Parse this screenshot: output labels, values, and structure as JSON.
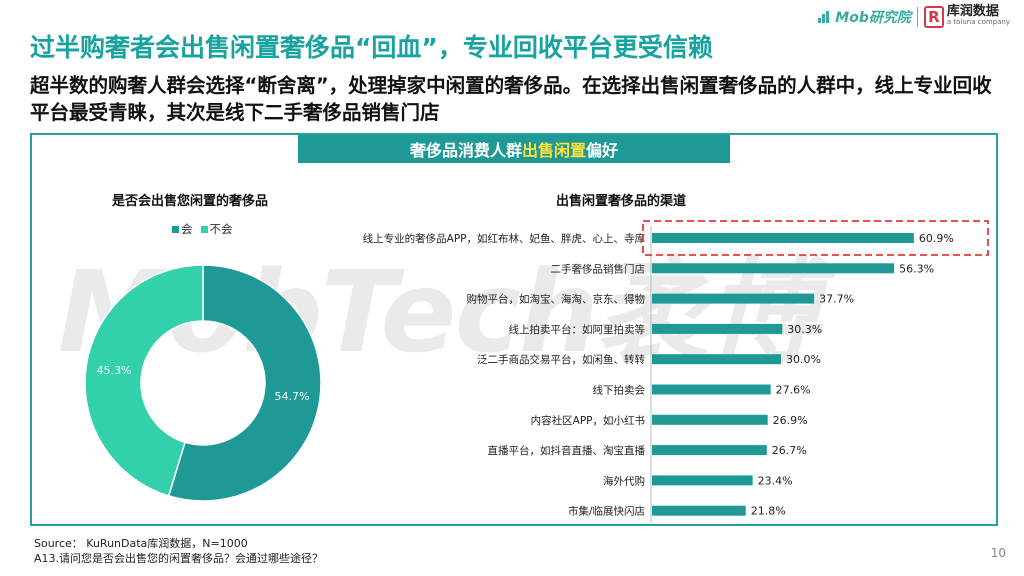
{
  "header": {
    "title": "过半购奢者会出售闲置奢侈品“回血”，专业回收平台更受信赖",
    "subtitle": "超半数的购奢人群会选择“断舍离”，处理掉家中闲置的奢侈品。在选择出售闲置奢侈品的人群中，线上专业回收平台最受青睐，其次是线下二手奢侈品销售门店"
  },
  "logos": {
    "mob": "Mob研究院",
    "kurun_main": "库润数据",
    "kurun_sub": "a toluna company",
    "kurun_mark": "R"
  },
  "banner": {
    "part1": "奢侈品消费人群",
    "highlight": "出售闲置",
    "part2": "偏好"
  },
  "watermark": "MobTech袤博",
  "colors": {
    "teal_dark": "#1e9995",
    "teal_light": "#33d1ab",
    "title": "#18a3a0",
    "highlight_box": "#e03a3a"
  },
  "chart_data": [
    {
      "type": "pie",
      "variant": "donut",
      "title": "是否会出售您闲置的奢侈品",
      "labels": [
        "会",
        "不会"
      ],
      "values": [
        54.7,
        45.3
      ],
      "value_labels": [
        "54.7%",
        "45.3%"
      ],
      "colors": [
        "#1e9995",
        "#33d1ab"
      ],
      "legend_position": "top"
    },
    {
      "type": "bar",
      "orientation": "horizontal",
      "title": "出售闲置奢侈品的渠道",
      "categories": [
        "线上专业的奢侈品APP，如红布林、妃鱼、胖虎、心上、寺库",
        "二手奢侈品销售门店",
        "购物平台，如淘宝、海淘、京东、得物",
        "线上拍卖平台：如阿里拍卖等",
        "泛二手商品交易平台，如闲鱼、转转",
        "线下拍卖会",
        "内容社区APP，如小红书",
        "直播平台，如抖音直播、淘宝直播",
        "海外代购",
        "市集/临展快闪店"
      ],
      "values": [
        60.9,
        56.3,
        37.7,
        30.3,
        30.0,
        27.6,
        26.9,
        26.7,
        23.4,
        21.8
      ],
      "value_labels": [
        "60.9%",
        "56.3%",
        "37.7%",
        "30.3%",
        "30.0%",
        "27.6%",
        "26.9%",
        "26.7%",
        "23.4%",
        "21.8%"
      ],
      "xlim": [
        0,
        70
      ],
      "highlighted_index": 0,
      "color": "#1e9995"
    }
  ],
  "source": {
    "line1": "Source： KuRunData库润数据，N=1000",
    "line2": "A13.请问您是否会出售您的闲置奢侈品？会通过哪些途径？"
  },
  "page_number": "10"
}
